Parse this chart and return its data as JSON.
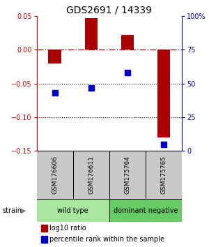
{
  "title": "GDS2691 / 14339",
  "samples": [
    "GSM176606",
    "GSM176611",
    "GSM175764",
    "GSM175765"
  ],
  "log10_ratio": [
    -0.02,
    0.047,
    0.022,
    -0.13
  ],
  "percentile_rank_raw": [
    43,
    47,
    58,
    5
  ],
  "ylim_left": [
    -0.15,
    0.05
  ],
  "ylim_right": [
    0,
    100
  ],
  "yticks_left": [
    -0.15,
    -0.1,
    -0.05,
    0.0,
    0.05
  ],
  "yticks_right": [
    0,
    25,
    50,
    75,
    100
  ],
  "groups": [
    {
      "label": "wild type",
      "samples": [
        0,
        1
      ],
      "color": "#a8e6a0"
    },
    {
      "label": "dominant negative",
      "samples": [
        2,
        3
      ],
      "color": "#66cc66"
    }
  ],
  "bar_color": "#aa0000",
  "dot_color": "#0000cc",
  "ref_line_color": "#cc0000",
  "dotted_line_color": "#000000",
  "sample_box_color": "#c8c8c8",
  "bg_color": "#ffffff",
  "title_fontsize": 10,
  "tick_fontsize": 7,
  "legend_fontsize": 7,
  "group_fontsize": 7,
  "sample_fontsize": 6.5
}
